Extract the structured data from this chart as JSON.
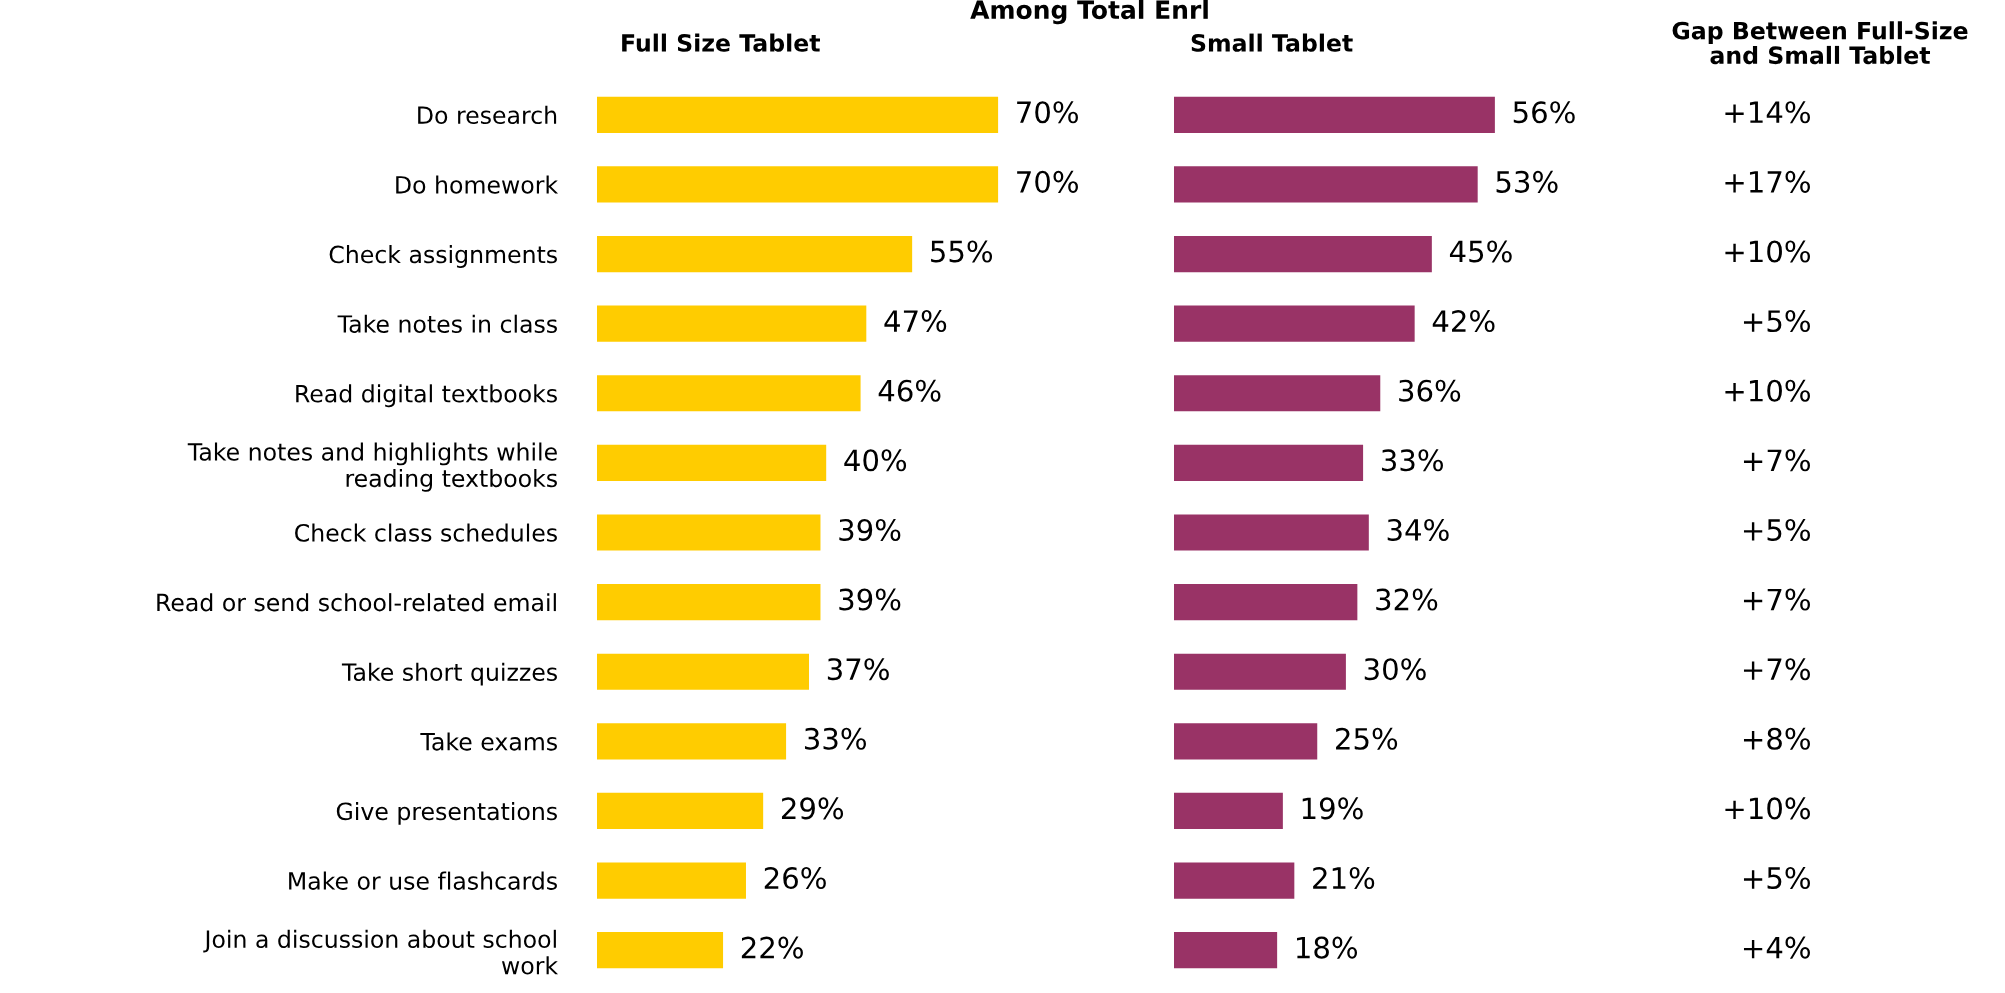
{
  "chart_data": [
    {
      "type": "bar",
      "orientation": "horizontal",
      "title": "Full Size Tablet",
      "subtitle": "Among Total Enrl",
      "tick_labels": "y",
      "categories": [
        "Do research",
        "Do homework",
        "Check assignments",
        "Take notes in class",
        "Read digital textbooks",
        "Take notes and highlights while\nreading textbooks",
        "Check class schedules",
        "Read or send school-related email",
        "Take short quizzes",
        "Take exams",
        "Give presentations",
        "Make or use flashcards",
        "Join a discussion about school\nwork"
      ],
      "values": [
        70,
        70,
        55,
        47,
        46,
        40,
        39,
        39,
        37,
        33,
        29,
        26,
        22
      ],
      "color": "#ffcc00",
      "value_labels": [
        "70%",
        "70%",
        "55%",
        "47%",
        "46%",
        "40%",
        "39%",
        "39%",
        "37%",
        "33%",
        "29%",
        "26%",
        "22%"
      ]
    },
    {
      "type": "bar",
      "orientation": "horizontal",
      "title": "Small Tablet",
      "tick_labels": false,
      "categories": [
        null,
        null,
        null,
        null,
        null,
        null,
        null,
        null,
        null,
        null,
        null,
        null,
        null
      ],
      "values": [
        56,
        53,
        45,
        42,
        36,
        33,
        34,
        32,
        30,
        25,
        19,
        21,
        18
      ],
      "color": "#993366",
      "value_labels": [
        "56%",
        "53%",
        "45%",
        "42%",
        "36%",
        "33%",
        "34%",
        "32%",
        "30%",
        "25%",
        "19%",
        "21%",
        "18%"
      ]
    },
    {
      "type": "other",
      "title": "Gap Between Full-Size\nand Small Tablet",
      "annotations": [
        "+14%",
        "+17%",
        "+10%",
        "+5%",
        "+10%",
        "+7%",
        "+5%",
        "+7%",
        "+7%",
        "+8%",
        "+10%",
        "+5%",
        "+4%"
      ]
    }
  ]
}
